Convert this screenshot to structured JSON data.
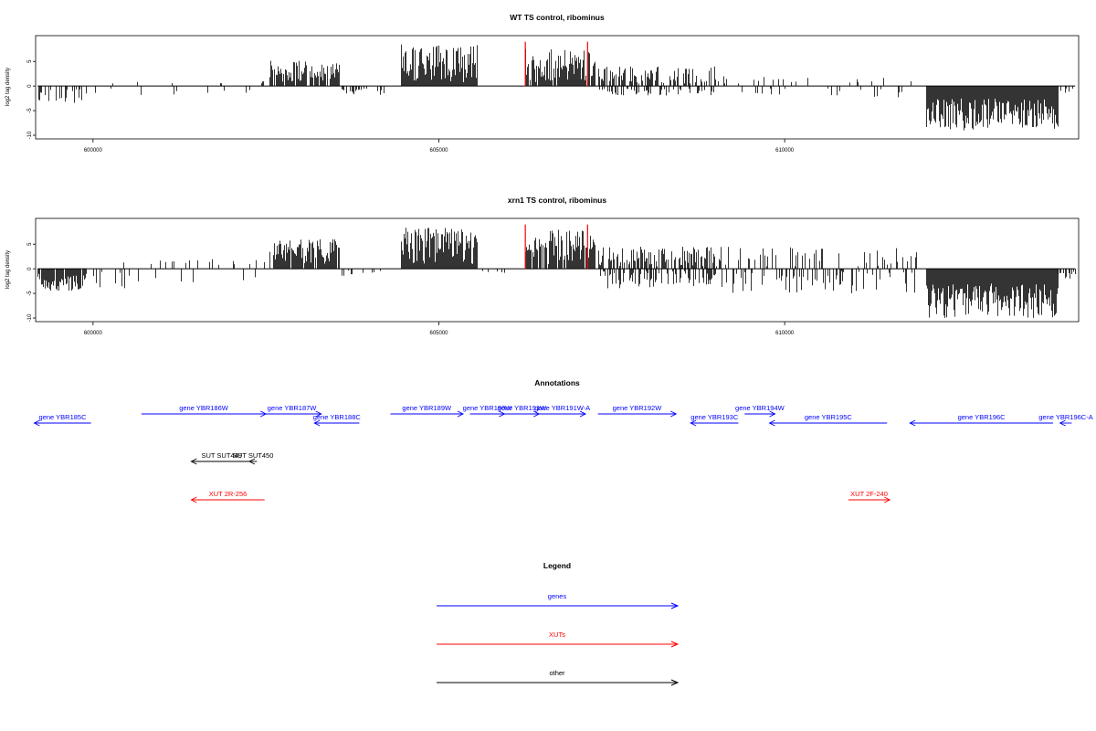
{
  "colors": {
    "genes": "#0000ff",
    "xuts": "#ff0000",
    "other": "#000000",
    "highlight": "#ff0000"
  },
  "chart_data": [
    {
      "type": "bar",
      "title": "WT TS control, ribominus",
      "ylabel": "log2 tag density",
      "xlabel": "",
      "xlim": [
        599170,
        614250
      ],
      "ylim": [
        -10,
        9.5
      ],
      "grid": false,
      "xticks": [
        600000,
        605000,
        610000
      ],
      "xtick_labels": [
        "600000",
        "605000",
        "610000"
      ],
      "yticks": [
        -10,
        -5,
        0,
        5
      ],
      "ytick_labels": [
        "-10",
        "-5",
        "0",
        "5"
      ],
      "highlight_x": [
        606250,
        607150
      ],
      "regions": [
        {
          "from": 599200,
          "to": 599900,
          "min": -3.5,
          "max": -0.6,
          "density": 0.35,
          "side": "neg"
        },
        {
          "from": 600000,
          "to": 602500,
          "min": -1.8,
          "max": 1.0,
          "density": 0.07,
          "side": "both"
        },
        {
          "from": 602550,
          "to": 603550,
          "min": 0.8,
          "max": 5.2,
          "density": 0.9,
          "side": "pos"
        },
        {
          "from": 603600,
          "to": 604200,
          "min": -1.8,
          "max": -0.4,
          "density": 0.3,
          "side": "neg"
        },
        {
          "from": 604450,
          "to": 605550,
          "min": 0.8,
          "max": 8.5,
          "density": 1.0,
          "side": "pos"
        },
        {
          "from": 606250,
          "to": 607250,
          "min": 0.8,
          "max": 7.5,
          "density": 0.9,
          "side": "pos"
        },
        {
          "from": 607300,
          "to": 609000,
          "min": 0.5,
          "max": 4.0,
          "density": 0.5,
          "side": "pos"
        },
        {
          "from": 607300,
          "to": 609000,
          "min": -2.0,
          "max": -0.5,
          "density": 0.3,
          "side": "neg"
        },
        {
          "from": 609000,
          "to": 611900,
          "min": -2.5,
          "max": 2.0,
          "density": 0.18,
          "side": "both"
        },
        {
          "from": 612050,
          "to": 613950,
          "min": -9.0,
          "max": -2.5,
          "density": 1.0,
          "side": "neg"
        },
        {
          "from": 613950,
          "to": 614200,
          "min": -1.5,
          "max": -0.5,
          "density": 0.3,
          "side": "neg"
        }
      ]
    },
    {
      "type": "bar",
      "title": "xrn1 TS control, ribominus",
      "ylabel": "log2 tag density",
      "xlabel": "",
      "xlim": [
        599170,
        614250
      ],
      "ylim": [
        -10,
        9.5
      ],
      "grid": false,
      "xticks": [
        600000,
        605000,
        610000
      ],
      "xtick_labels": [
        "600000",
        "605000",
        "610000"
      ],
      "yticks": [
        -10,
        -5,
        0,
        5
      ],
      "ytick_labels": [
        "-10",
        "-5",
        "0",
        "5"
      ],
      "highlight_x": [
        606250,
        607150
      ],
      "regions": [
        {
          "from": 599200,
          "to": 599900,
          "min": -4.5,
          "max": -1.0,
          "density": 0.9,
          "side": "neg"
        },
        {
          "from": 600000,
          "to": 602500,
          "min": -4.0,
          "max": 2.0,
          "density": 0.2,
          "side": "both"
        },
        {
          "from": 602550,
          "to": 603550,
          "min": 1.0,
          "max": 6.0,
          "density": 0.9,
          "side": "pos"
        },
        {
          "from": 603600,
          "to": 604200,
          "min": -1.5,
          "max": -0.3,
          "density": 0.2,
          "side": "neg"
        },
        {
          "from": 604450,
          "to": 605550,
          "min": 1.0,
          "max": 8.5,
          "density": 1.0,
          "side": "pos"
        },
        {
          "from": 605550,
          "to": 606200,
          "min": -2.0,
          "max": -0.3,
          "density": 0.1,
          "side": "neg"
        },
        {
          "from": 606250,
          "to": 607250,
          "min": 0.8,
          "max": 8.0,
          "density": 0.9,
          "side": "pos"
        },
        {
          "from": 607300,
          "to": 609000,
          "min": 0.5,
          "max": 4.5,
          "density": 0.6,
          "side": "pos"
        },
        {
          "from": 607300,
          "to": 609000,
          "min": -4.0,
          "max": -0.5,
          "density": 0.5,
          "side": "neg"
        },
        {
          "from": 609000,
          "to": 611900,
          "min": -5.0,
          "max": 4.5,
          "density": 0.5,
          "side": "both"
        },
        {
          "from": 612050,
          "to": 613950,
          "min": -10.0,
          "max": -3.0,
          "density": 1.0,
          "side": "neg"
        },
        {
          "from": 613950,
          "to": 614200,
          "min": -2.0,
          "max": -0.5,
          "density": 0.5,
          "side": "neg"
        }
      ]
    }
  ],
  "annotations": {
    "title": "Annotations",
    "features": [
      {
        "label": "gene YBR185C",
        "type": "genes",
        "start": 599150,
        "end": 599970,
        "strand": "-",
        "track": 1
      },
      {
        "label": "gene YBR186W",
        "type": "genes",
        "start": 600700,
        "end": 602500,
        "strand": "+",
        "track": 0
      },
      {
        "label": "gene YBR187W",
        "type": "genes",
        "start": 602450,
        "end": 603300,
        "strand": "+",
        "track": 0
      },
      {
        "label": "gene YBR188C",
        "type": "genes",
        "start": 603200,
        "end": 603850,
        "strand": "-",
        "track": 1
      },
      {
        "label": "gene YBR189W",
        "type": "genes",
        "start": 604300,
        "end": 605350,
        "strand": "+",
        "track": 0
      },
      {
        "label": "gene YBR190W",
        "type": "genes",
        "start": 605450,
        "end": 605950,
        "strand": "+",
        "track": 0
      },
      {
        "label": "gene YBR191W",
        "type": "genes",
        "start": 605950,
        "end": 606450,
        "strand": "+",
        "track": 0
      },
      {
        "label": "gene YBR191W-A",
        "type": "genes",
        "start": 606450,
        "end": 607120,
        "strand": "+",
        "track": 0
      },
      {
        "label": "gene YBR192W",
        "type": "genes",
        "start": 607300,
        "end": 608430,
        "strand": "+",
        "track": 0
      },
      {
        "label": "gene YBR193C",
        "type": "genes",
        "start": 608640,
        "end": 609330,
        "strand": "-",
        "track": 1
      },
      {
        "label": "gene YBR194W",
        "type": "genes",
        "start": 609420,
        "end": 609860,
        "strand": "+",
        "track": 0
      },
      {
        "label": "gene YBR195C",
        "type": "genes",
        "start": 609780,
        "end": 611480,
        "strand": "-",
        "track": 1
      },
      {
        "label": "gene YBR196C",
        "type": "genes",
        "start": 611810,
        "end": 613880,
        "strand": "-",
        "track": 1
      },
      {
        "label": "gene YBR196C-A",
        "type": "genes",
        "start": 613980,
        "end": 614150,
        "strand": "-",
        "track": 1
      },
      {
        "label": "SUT SUT449",
        "type": "other",
        "start": 601420,
        "end": 602300,
        "strand": "-",
        "track": 2
      },
      {
        "label": "SUT SUT450",
        "type": "other",
        "start": 602260,
        "end": 602370,
        "strand": "-",
        "track": 2
      },
      {
        "label": "XUT 2R-256",
        "type": "xuts",
        "start": 601420,
        "end": 602480,
        "strand": "-",
        "track": 3
      },
      {
        "label": "XUT 2F-240",
        "type": "xuts",
        "start": 610920,
        "end": 611520,
        "strand": "+",
        "track": 3
      }
    ]
  },
  "legend": {
    "title": "Legend",
    "items": [
      {
        "label": "genes",
        "type": "genes"
      },
      {
        "label": "XUTs",
        "type": "xuts"
      },
      {
        "label": "other",
        "type": "other"
      }
    ]
  }
}
